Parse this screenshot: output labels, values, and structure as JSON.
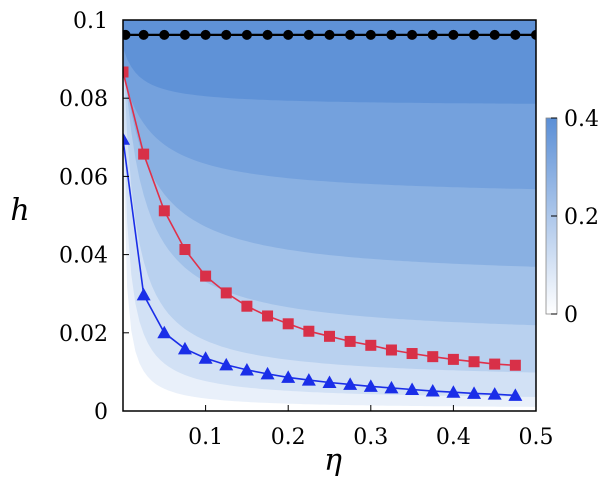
{
  "chart_data": {
    "type": "contour",
    "xlabel": "η",
    "ylabel": "h",
    "xlim": [
      0,
      0.5
    ],
    "ylim": [
      0,
      0.1
    ],
    "x_ticks": [
      "0.1",
      "0.2",
      "0.3",
      "0.4",
      "0.5"
    ],
    "y_ticks": [
      "0",
      "0.02",
      "0.04",
      "0.06",
      "0.08",
      "0.1"
    ],
    "colorbar": {
      "ticks": [
        "0",
        "0.2",
        "0.4"
      ],
      "range": [
        0,
        0.4
      ],
      "colors": [
        "#ffffff",
        "#5b8fd6"
      ]
    },
    "series": [
      {
        "marker": "circle",
        "color": "#000000",
        "x": [
          0.003,
          0.025,
          0.05,
          0.075,
          0.1,
          0.125,
          0.15,
          0.175,
          0.2,
          0.225,
          0.25,
          0.275,
          0.3,
          0.325,
          0.35,
          0.375,
          0.4,
          0.425,
          0.45,
          0.475,
          0.5
        ],
        "y": [
          0.0962,
          0.0962,
          0.0962,
          0.0962,
          0.0962,
          0.0962,
          0.0962,
          0.0962,
          0.0962,
          0.0962,
          0.0962,
          0.0962,
          0.0962,
          0.0962,
          0.0962,
          0.0962,
          0.0962,
          0.0962,
          0.0962,
          0.0962,
          0.0962
        ]
      },
      {
        "marker": "square",
        "color": "#e0304a",
        "x": [
          0.0,
          0.025,
          0.05,
          0.075,
          0.1,
          0.125,
          0.15,
          0.175,
          0.2,
          0.225,
          0.25,
          0.275,
          0.3,
          0.325,
          0.35,
          0.375,
          0.4,
          0.425,
          0.45,
          0.475
        ],
        "y": [
          0.0867,
          0.0657,
          0.0512,
          0.0413,
          0.0345,
          0.0302,
          0.0268,
          0.0243,
          0.0223,
          0.0204,
          0.0191,
          0.0178,
          0.0168,
          0.0156,
          0.0147,
          0.0139,
          0.0132,
          0.0126,
          0.012,
          0.0117
        ]
      },
      {
        "marker": "triangle",
        "color": "#1a2ee8",
        "x": [
          0.0,
          0.025,
          0.05,
          0.075,
          0.1,
          0.125,
          0.15,
          0.175,
          0.2,
          0.225,
          0.25,
          0.275,
          0.3,
          0.325,
          0.35,
          0.375,
          0.4,
          0.425,
          0.45,
          0.475
        ],
        "y": [
          0.0695,
          0.0297,
          0.02,
          0.0159,
          0.0135,
          0.0118,
          0.0105,
          0.0095,
          0.0086,
          0.0079,
          0.0073,
          0.0068,
          0.0063,
          0.0059,
          0.0055,
          0.0051,
          0.0048,
          0.0045,
          0.0043,
          0.004
        ]
      }
    ]
  }
}
